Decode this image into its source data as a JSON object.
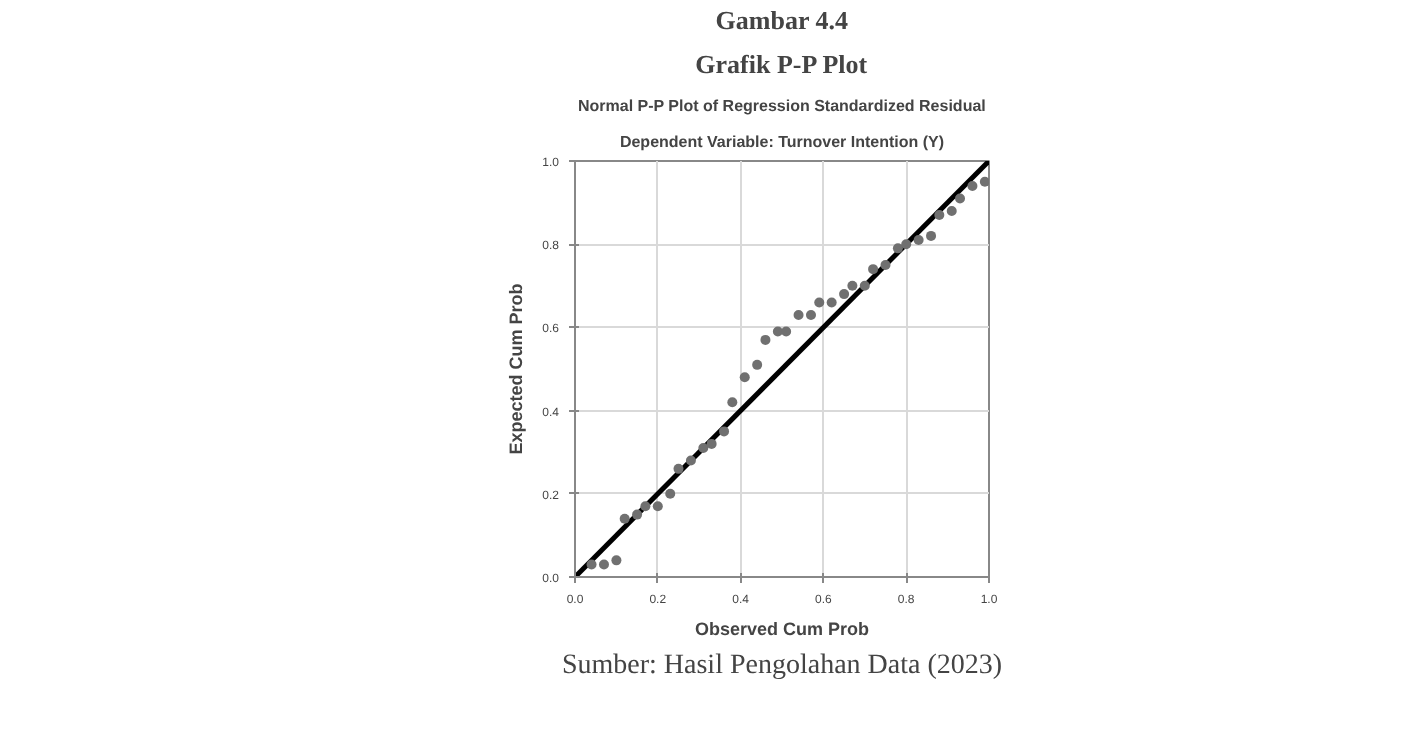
{
  "chart_data": {
    "type": "scatter",
    "title": "Normal P-P Plot of Regression Standardized Residual",
    "subtitle": "Dependent Variable: Turnover Intention (Y)",
    "xlabel": "Observed Cum Prob",
    "ylabel": "Expected Cum Prob",
    "annotations": [
      "Gambar 4.4",
      "Grafik P-P Plot",
      "Sumber: Hasil Pengolahan Data (2023)"
    ],
    "xlim": [
      0,
      1
    ],
    "ylim": [
      0,
      1
    ],
    "xticks": [
      {
        "value": 0,
        "label": "0.0"
      },
      {
        "value": 0.2,
        "label": "0.2"
      },
      {
        "value": 0.4,
        "label": "0.4"
      },
      {
        "value": 0.6,
        "label": "0.6"
      },
      {
        "value": 0.8,
        "label": "0.8"
      },
      {
        "value": 1,
        "label": "1.0"
      }
    ],
    "yticks": [
      {
        "value": 0,
        "label": "0.0"
      },
      {
        "value": 0.2,
        "label": "0.2"
      },
      {
        "value": 0.4,
        "label": "0.4"
      },
      {
        "value": 0.6,
        "label": "0.6"
      },
      {
        "value": 0.8,
        "label": "0.8"
      },
      {
        "value": 1,
        "label": "1.0"
      }
    ],
    "grid": true,
    "marker": "circle",
    "series": [
      {
        "color": "#707070",
        "x": [
          0.04,
          0.07,
          0.1,
          0.12,
          0.15,
          0.17,
          0.2,
          0.23,
          0.25,
          0.28,
          0.31,
          0.33,
          0.36,
          0.38,
          0.41,
          0.44,
          0.46,
          0.49,
          0.51,
          0.54,
          0.57,
          0.59,
          0.62,
          0.65,
          0.67,
          0.7,
          0.72,
          0.75,
          0.78,
          0.8,
          0.83,
          0.86,
          0.88,
          0.91,
          0.93,
          0.96,
          0.99
        ],
        "values": [
          0.03,
          0.03,
          0.04,
          0.14,
          0.15,
          0.17,
          0.17,
          0.2,
          0.26,
          0.28,
          0.31,
          0.32,
          0.35,
          0.42,
          0.48,
          0.51,
          0.57,
          0.59,
          0.59,
          0.63,
          0.63,
          0.66,
          0.66,
          0.68,
          0.7,
          0.7,
          0.74,
          0.75,
          0.79,
          0.8,
          0.81,
          0.82,
          0.87,
          0.88,
          0.91,
          0.94,
          0.95
        ]
      },
      {
        "type": "line",
        "marker": "none",
        "color": "#000000",
        "x": [
          0,
          1
        ],
        "values": [
          0,
          1
        ]
      }
    ]
  }
}
